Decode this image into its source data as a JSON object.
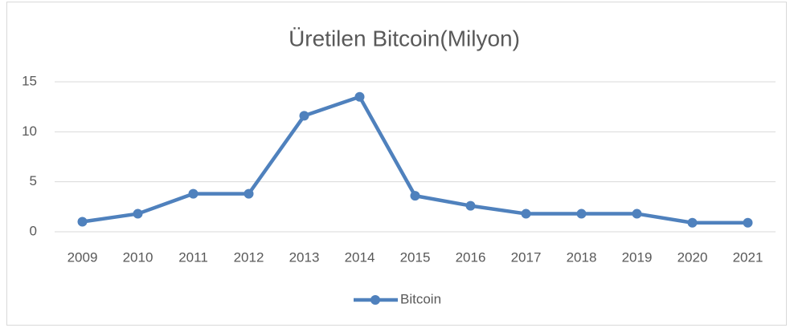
{
  "chart_data": {
    "type": "line",
    "title": "Üretilen Bitcoin(Milyon)",
    "categories": [
      "2009",
      "2010",
      "2011",
      "2012",
      "2013",
      "2014",
      "2015",
      "2016",
      "2017",
      "2018",
      "2019",
      "2020",
      "2021"
    ],
    "series": [
      {
        "name": "Bitcoin",
        "color": "#4f81bd",
        "values": [
          1.0,
          1.8,
          3.8,
          3.8,
          11.6,
          13.5,
          3.6,
          2.6,
          1.8,
          1.8,
          1.8,
          0.9,
          0.9
        ]
      }
    ],
    "ylim": [
      0,
      15
    ],
    "yticks": [
      0,
      5,
      10,
      15
    ],
    "grid": true,
    "legend": "bottom"
  }
}
